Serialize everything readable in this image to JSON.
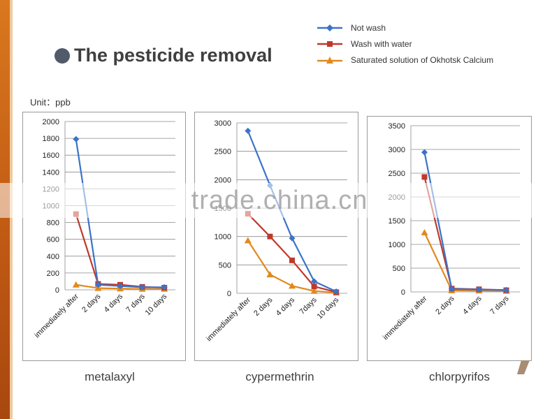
{
  "title": "The pesticide removal",
  "unit": "Unit：ppb",
  "watermark": "trade.china.cn",
  "colors": {
    "not_wash": "#3b73c9",
    "wash_water": "#c0392b",
    "saturated": "#e08a1e",
    "accent": "#d9781f"
  },
  "legend": [
    {
      "label": "Not wash",
      "marker": "diamond",
      "color": "#3b73c9"
    },
    {
      "label": "Wash with water",
      "marker": "square",
      "color": "#c0392b"
    },
    {
      "label": "Saturated solution of Okhotsk Calcium",
      "marker": "triangle",
      "color": "#e08a1e"
    }
  ],
  "chart_data": [
    {
      "type": "line",
      "title": "metalaxyl",
      "categories": [
        "immediately after",
        "2 days",
        "4 days",
        "7 days",
        "10 days"
      ],
      "ylim": [
        0,
        2000
      ],
      "yticks": [
        "0",
        "200",
        "400",
        "600",
        "800",
        "1000",
        "1200",
        "1400",
        "1600",
        "1800",
        "2000"
      ],
      "grid": true,
      "series": [
        {
          "name": "Not wash",
          "values": [
            1790,
            60,
            45,
            30,
            30
          ]
        },
        {
          "name": "Wash with water",
          "values": [
            900,
            70,
            60,
            35,
            25
          ]
        },
        {
          "name": "Saturated solution of Okhotsk Calcium",
          "values": [
            60,
            20,
            15,
            10,
            10
          ]
        }
      ]
    },
    {
      "type": "line",
      "title": "cypermethrin",
      "categories": [
        "immediately after",
        "2 days",
        "4 days",
        "7days",
        "10 days"
      ],
      "ylim": [
        0,
        3000
      ],
      "yticks": [
        "0",
        "500",
        "1000",
        "1500",
        "2000",
        "2500",
        "3000"
      ],
      "grid": true,
      "series": [
        {
          "name": "Not wash",
          "values": [
            2860,
            1900,
            970,
            210,
            30
          ]
        },
        {
          "name": "Wash with water",
          "values": [
            1400,
            1000,
            580,
            120,
            20
          ]
        },
        {
          "name": "Saturated solution of Okhotsk Calcium",
          "values": [
            930,
            330,
            130,
            40,
            10
          ]
        }
      ]
    },
    {
      "type": "line",
      "title": "chlorpyrifos",
      "categories": [
        "immediately after",
        "2 days",
        "4 days",
        "7 days"
      ],
      "ylim": [
        0,
        3500
      ],
      "yticks": [
        "0",
        "500",
        "1000",
        "1500",
        "2000",
        "2500",
        "3000",
        "3500"
      ],
      "grid": true,
      "series": [
        {
          "name": "Not wash",
          "values": [
            2940,
            60,
            50,
            40
          ]
        },
        {
          "name": "Wash with water",
          "values": [
            2420,
            70,
            55,
            35
          ]
        },
        {
          "name": "Saturated solution of Okhotsk Calcium",
          "values": [
            1250,
            30,
            25,
            20
          ]
        }
      ]
    }
  ]
}
